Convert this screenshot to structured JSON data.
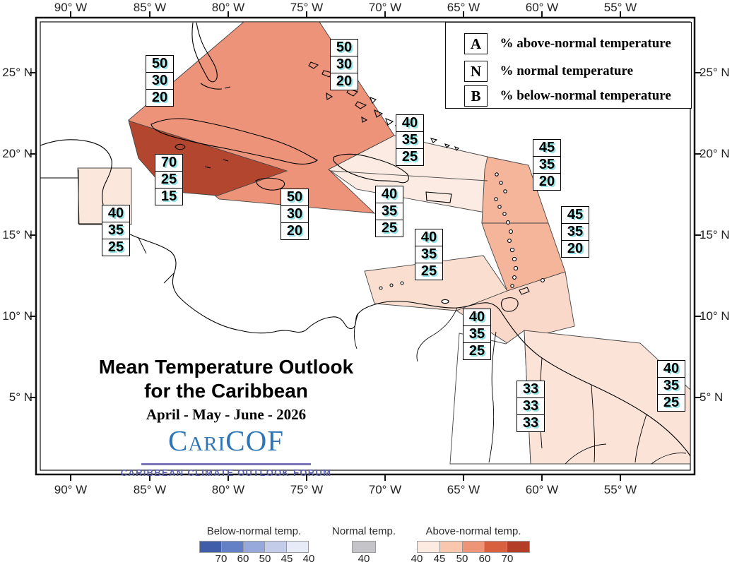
{
  "map": {
    "axis": {
      "longitude_labels": [
        "90° W",
        "85° W",
        "80° W",
        "75° W",
        "70° W",
        "65° W",
        "60° W",
        "55° W"
      ],
      "latitude_labels": [
        "25° N",
        "20° N",
        "15° N",
        "10° N",
        "5° N"
      ]
    },
    "legend": {
      "items": [
        {
          "symbol": "A",
          "label": "% above-normal temperature"
        },
        {
          "symbol": "N",
          "label": "% normal temperature"
        },
        {
          "symbol": "B",
          "label": "% below-normal temperature"
        }
      ]
    },
    "title_line1": "Mean Temperature Outlook",
    "title_line2": "for the Caribbean",
    "period": "April - May - June - 2026",
    "logo": {
      "name": "CariCOF",
      "name_parts": [
        "C",
        "ari",
        "COF"
      ],
      "tagline": "CARIBBEAN CLIMATE OUTLOOK FORUM",
      "text_color": "#2e76b5",
      "rule_color": "#7b74b8",
      "tagline_color": "#5a5fa9"
    },
    "probability_boxes": [
      {
        "region": "north-of-cuba",
        "above": "50",
        "normal": "30",
        "below": "20"
      },
      {
        "region": "bahamas",
        "above": "50",
        "normal": "30",
        "below": "20"
      },
      {
        "region": "hispaniola",
        "above": "40",
        "normal": "35",
        "below": "25"
      },
      {
        "region": "leeward-islands",
        "above": "45",
        "normal": "35",
        "below": "20"
      },
      {
        "region": "western-cuba",
        "above": "70",
        "normal": "25",
        "below": "15"
      },
      {
        "region": "jamaica-cayman",
        "above": "50",
        "normal": "30",
        "below": "20"
      },
      {
        "region": "puerto-rico",
        "above": "40",
        "normal": "35",
        "below": "25"
      },
      {
        "region": "belize",
        "above": "40",
        "normal": "35",
        "below": "25"
      },
      {
        "region": "windward-islands",
        "above": "45",
        "normal": "35",
        "below": "20"
      },
      {
        "region": "abc-islands",
        "above": "40",
        "normal": "35",
        "below": "25"
      },
      {
        "region": "trinidad-tobago",
        "above": "40",
        "normal": "35",
        "below": "25"
      },
      {
        "region": "guyana",
        "above": "33",
        "normal": "33",
        "below": "33"
      },
      {
        "region": "french-guiana-suriname",
        "above": "40",
        "normal": "35",
        "below": "25"
      }
    ],
    "zone_fills": {
      "cuba-bahamas-50": "#ec937a",
      "western-cuba-70": "#b2462f",
      "hispaniola-puerto-rico-40": "#fcebe3",
      "leeward-45": "#f4b59b",
      "windward-45": "#f4b59b",
      "abc-40": "#fadfd1",
      "trinidad-40": "#f9d8c9",
      "guyana-33": "#ffffff",
      "french-guiana-40": "#fbe3d8",
      "belize-40": "#fbe7dc"
    }
  },
  "color_scale": {
    "below_normal": {
      "title": "Below-normal temp.",
      "tick_labels": [
        "70",
        "60",
        "50",
        "45",
        "40"
      ],
      "colors": [
        "#3f5da8",
        "#6380c6",
        "#96a9da",
        "#c3cde9",
        "#e7ebf7"
      ]
    },
    "normal": {
      "title": "Normal temp.",
      "tick_labels": [
        "40"
      ],
      "colors": [
        "#c5c4c9"
      ]
    },
    "above_normal": {
      "title": "Above-normal temp.",
      "tick_labels": [
        "40",
        "45",
        "50",
        "60",
        "70"
      ],
      "colors": [
        "#fdeae1",
        "#f8c7ad",
        "#ef9577",
        "#d9603e",
        "#b33d27"
      ]
    }
  }
}
